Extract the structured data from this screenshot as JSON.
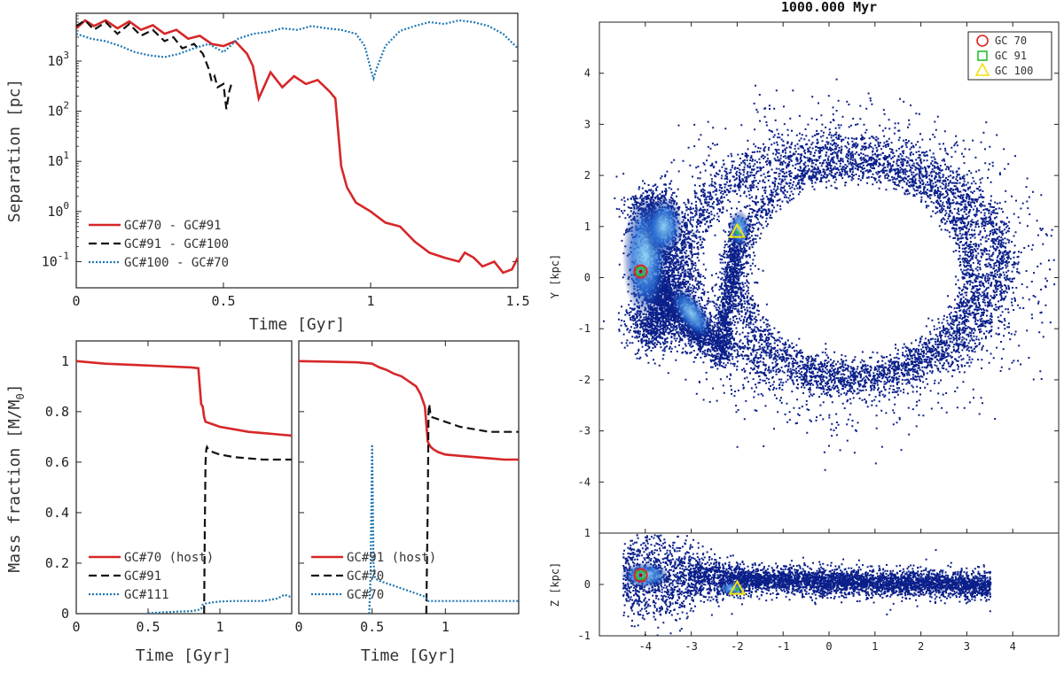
{
  "colors": {
    "red": "#d62728",
    "black": "#111111",
    "blue": "#1f77b4",
    "density_dark": "#0a1f8a",
    "density_mid": "#2a6fd6",
    "density_light": "#8fd6f5",
    "marker_red": "#e02020",
    "marker_green": "#22c02a",
    "marker_yellow": "#f2e20a"
  },
  "chart_data": [
    {
      "id": "separation",
      "type": "line",
      "yscale": "log",
      "xlabel": "Time [Gyr]",
      "ylabel": "Separation [pc]",
      "xlim": [
        0,
        1.5
      ],
      "ylim": [
        0.03,
        9000
      ],
      "xticks": [
        "0",
        "0.5",
        "1",
        "1.5"
      ],
      "yticks": [
        {
          "v": 0.1,
          "base": "10",
          "exp": "-1"
        },
        {
          "v": 1,
          "base": "10",
          "exp": "0"
        },
        {
          "v": 10,
          "base": "10",
          "exp": "1"
        },
        {
          "v": 100,
          "base": "10",
          "exp": "2"
        },
        {
          "v": 1000,
          "base": "10",
          "exp": "3"
        }
      ],
      "series": [
        {
          "name": "GC#70 - GC#91",
          "style": "solid",
          "color": "#d62728",
          "x": [
            0,
            0.03,
            0.06,
            0.1,
            0.14,
            0.18,
            0.22,
            0.26,
            0.3,
            0.34,
            0.38,
            0.42,
            0.46,
            0.5,
            0.54,
            0.58,
            0.6,
            0.62,
            0.66,
            0.7,
            0.74,
            0.78,
            0.82,
            0.86,
            0.88,
            0.9,
            0.92,
            0.95,
            1.0,
            1.05,
            1.1,
            1.15,
            1.2,
            1.25,
            1.3,
            1.32,
            1.35,
            1.38,
            1.42,
            1.45,
            1.48,
            1.5
          ],
          "y": [
            4500,
            6500,
            5000,
            6500,
            4500,
            6200,
            4200,
            5200,
            3500,
            4200,
            2800,
            3200,
            2200,
            2000,
            2500,
            1400,
            800,
            180,
            600,
            300,
            500,
            350,
            420,
            250,
            180,
            8,
            3,
            1.5,
            1.0,
            0.6,
            0.5,
            0.25,
            0.15,
            0.12,
            0.1,
            0.15,
            0.12,
            0.08,
            0.1,
            0.06,
            0.07,
            0.12
          ]
        },
        {
          "name": "GC#91 - GC#100",
          "style": "dashed",
          "color": "#111111",
          "x": [
            0,
            0.03,
            0.06,
            0.1,
            0.14,
            0.18,
            0.22,
            0.26,
            0.3,
            0.33,
            0.36,
            0.4,
            0.43,
            0.45,
            0.46,
            0.47,
            0.48,
            0.5,
            0.51,
            0.52,
            0.53
          ],
          "y": [
            5000,
            6500,
            4200,
            6000,
            3500,
            5500,
            3200,
            4200,
            2500,
            3000,
            1800,
            2200,
            1400,
            700,
            400,
            500,
            300,
            350,
            110,
            250,
            400
          ]
        },
        {
          "name": "GC#100 - GC#70",
          "style": "dotted",
          "color": "#1f77b4",
          "x": [
            0,
            0.05,
            0.1,
            0.15,
            0.2,
            0.25,
            0.3,
            0.35,
            0.4,
            0.45,
            0.5,
            0.55,
            0.6,
            0.65,
            0.7,
            0.75,
            0.8,
            0.85,
            0.9,
            0.95,
            0.98,
            1.0,
            1.01,
            1.02,
            1.05,
            1.1,
            1.15,
            1.2,
            1.25,
            1.3,
            1.35,
            1.4,
            1.45,
            1.5
          ],
          "y": [
            3500,
            2800,
            2500,
            2000,
            1500,
            1300,
            1200,
            1400,
            1800,
            2200,
            1500,
            2800,
            3500,
            3800,
            4500,
            4200,
            5000,
            4500,
            4200,
            3500,
            2000,
            700,
            450,
            700,
            2000,
            4000,
            5000,
            6000,
            5500,
            6500,
            6000,
            5000,
            3500,
            1800
          ]
        }
      ]
    },
    {
      "id": "mass-left",
      "type": "line",
      "xlabel": "Time [Gyr]",
      "ylabel_main": "Mass fraction [M/M",
      "ylabel_sub": "0",
      "ylabel_end": "]",
      "xlim": [
        0,
        1.5
      ],
      "ylim": [
        0,
        1.08
      ],
      "xticks": [
        "0",
        "0.5",
        "1"
      ],
      "yticks": [
        "0",
        "0.2",
        "0.4",
        "0.6",
        "0.8",
        "1"
      ],
      "series": [
        {
          "name": "GC#70 (host)",
          "style": "solid",
          "color": "#d62728",
          "x": [
            0,
            0.2,
            0.4,
            0.6,
            0.8,
            0.85,
            0.86,
            0.87,
            0.88,
            0.89,
            0.9,
            0.95,
            1.0,
            1.1,
            1.2,
            1.3,
            1.4,
            1.5
          ],
          "y": [
            1.0,
            0.99,
            0.985,
            0.98,
            0.975,
            0.972,
            0.9,
            0.83,
            0.82,
            0.78,
            0.76,
            0.75,
            0.74,
            0.73,
            0.72,
            0.715,
            0.71,
            0.705
          ]
        },
        {
          "name": "GC#91",
          "style": "dashed",
          "color": "#111111",
          "x": [
            0.89,
            0.895,
            0.9,
            0.905,
            0.91,
            0.92,
            0.95,
            1.0,
            1.1,
            1.2,
            1.3,
            1.4,
            1.5
          ],
          "y": [
            0,
            0.35,
            0.6,
            0.65,
            0.66,
            0.65,
            0.64,
            0.63,
            0.62,
            0.615,
            0.61,
            0.61,
            0.61
          ]
        },
        {
          "name": "GC#111",
          "style": "dotted",
          "color": "#1f77b4",
          "x": [
            0.5,
            0.6,
            0.7,
            0.8,
            0.85,
            0.87,
            0.88,
            0.9,
            0.95,
            1.0,
            1.1,
            1.2,
            1.3,
            1.35,
            1.4,
            1.45,
            1.5
          ],
          "y": [
            0.002,
            0.005,
            0.008,
            0.01,
            0.015,
            0.02,
            0.035,
            0.04,
            0.045,
            0.048,
            0.05,
            0.05,
            0.05,
            0.055,
            0.06,
            0.075,
            0.065
          ]
        }
      ]
    },
    {
      "id": "mass-right",
      "type": "line",
      "xlabel": "Time [Gyr]",
      "xlim": [
        0,
        1.5
      ],
      "ylim": [
        0,
        1.08
      ],
      "xticks": [
        "0",
        "0.5",
        "1"
      ],
      "series": [
        {
          "name": "GC#91 (host)",
          "style": "solid",
          "color": "#d62728",
          "x": [
            0,
            0.2,
            0.4,
            0.5,
            0.55,
            0.6,
            0.65,
            0.7,
            0.75,
            0.8,
            0.83,
            0.86,
            0.88,
            0.9,
            0.92,
            0.95,
            1.0,
            1.1,
            1.2,
            1.3,
            1.4,
            1.5
          ],
          "y": [
            1.0,
            0.998,
            0.995,
            0.99,
            0.975,
            0.965,
            0.95,
            0.94,
            0.92,
            0.9,
            0.87,
            0.82,
            0.68,
            0.66,
            0.65,
            0.64,
            0.63,
            0.625,
            0.62,
            0.615,
            0.61,
            0.61
          ]
        },
        {
          "name": "GC#70",
          "style": "dashed",
          "color": "#111111",
          "x": [
            0.87,
            0.88,
            0.885,
            0.89,
            0.9,
            0.95,
            1.0,
            1.1,
            1.2,
            1.3,
            1.4,
            1.5
          ],
          "y": [
            0,
            0.45,
            0.8,
            0.83,
            0.78,
            0.77,
            0.76,
            0.74,
            0.73,
            0.72,
            0.72,
            0.72
          ]
        },
        {
          "name": "GC#70",
          "style": "dotted",
          "color": "#1f77b4",
          "x": [
            0.48,
            0.49,
            0.495,
            0.5,
            0.505,
            0.51,
            0.52,
            0.55,
            0.6,
            0.65,
            0.7,
            0.75,
            0.8,
            0.85,
            0.87,
            0.88,
            0.9,
            1.0,
            1.2,
            1.4,
            1.5
          ],
          "y": [
            0,
            0.15,
            0.4,
            0.67,
            0.45,
            0.2,
            0.14,
            0.13,
            0.12,
            0.11,
            0.1,
            0.09,
            0.08,
            0.07,
            0.06,
            0.05,
            0.05,
            0.05,
            0.05,
            0.05,
            0.05
          ]
        }
      ]
    },
    {
      "id": "xy-map",
      "type": "heatmap",
      "title": "1000.000 Myr",
      "ylabel": "Y [kpc]",
      "xlim": [
        -5,
        5
      ],
      "ylim": [
        -5,
        5
      ],
      "yticks": [
        "-4",
        "-3",
        "-2",
        "-1",
        "0",
        "1",
        "2",
        "3",
        "4"
      ],
      "legend": [
        "GC 70",
        "GC 91",
        "GC 100"
      ],
      "markers": [
        {
          "name": "GC 70",
          "x": -4.1,
          "y": 0.12
        },
        {
          "name": "GC 91",
          "x": -4.1,
          "y": 0.12
        },
        {
          "name": "GC 100",
          "x": -2.0,
          "y": 0.9
        }
      ]
    },
    {
      "id": "xz-map",
      "type": "heatmap",
      "ylabel": "Z [kpc]",
      "xlim": [
        -5,
        5
      ],
      "ylim": [
        -1,
        1
      ],
      "xticks": [
        "-4",
        "-3",
        "-2",
        "-1",
        "0",
        "1",
        "2",
        "3",
        "4"
      ],
      "yticks": [
        "-1",
        "0",
        "1"
      ],
      "markers": [
        {
          "name": "GC 70",
          "x": -4.1,
          "y": 0.18
        },
        {
          "name": "GC 91",
          "x": -4.1,
          "y": 0.18
        },
        {
          "name": "GC 100",
          "x": -2.0,
          "y": -0.08
        }
      ]
    }
  ]
}
